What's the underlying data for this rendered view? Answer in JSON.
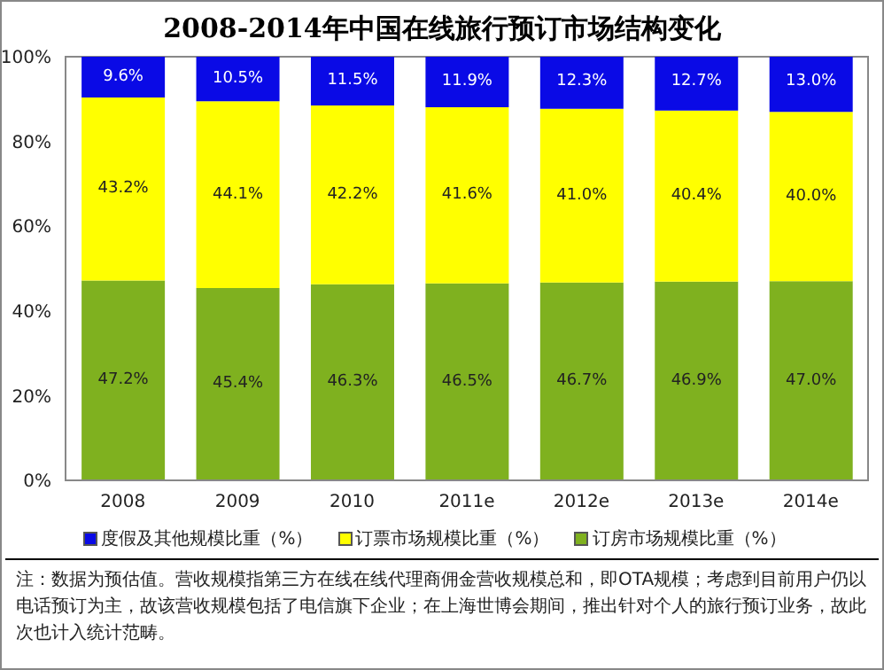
{
  "chart_data": {
    "type": "bar",
    "title": "2008-2014年中国在线旅行预订市场结构变化",
    "categories": [
      "2008",
      "2009",
      "2010",
      "2011e",
      "2012e",
      "2013e",
      "2014e"
    ],
    "stacked": true,
    "ylim": [
      0,
      100
    ],
    "yticks": [
      {
        "value": 0,
        "label": "0%"
      },
      {
        "value": 20,
        "label": "20%"
      },
      {
        "value": 40,
        "label": "40%"
      },
      {
        "value": 60,
        "label": "60%"
      },
      {
        "value": 80,
        "label": "80%"
      },
      {
        "value": 100,
        "label": "100%"
      }
    ],
    "legend": "bottom",
    "series": [
      {
        "name": "订房市场规模比重（%）",
        "color": "#7fb11f",
        "values": [
          47.2,
          45.4,
          46.3,
          46.5,
          46.7,
          46.9,
          47.0
        ],
        "value_labels": [
          "47.2%",
          "45.4%",
          "46.3%",
          "46.5%",
          "46.7%",
          "46.9%",
          "47.0%"
        ]
      },
      {
        "name": "订票市场规模比重（%）",
        "color": "#ffff00",
        "values": [
          43.2,
          44.1,
          42.2,
          41.6,
          41.0,
          40.4,
          40.0
        ],
        "value_labels": [
          "43.2%",
          "44.1%",
          "42.2%",
          "41.6%",
          "41.0%",
          "40.4%",
          "40.0%"
        ]
      },
      {
        "name": "度假及其他规模比重（%）",
        "color": "#0a0ae6",
        "values": [
          9.6,
          10.5,
          11.5,
          11.9,
          12.3,
          12.7,
          13.0
        ],
        "value_labels": [
          "9.6%",
          "10.5%",
          "11.5%",
          "11.9%",
          "12.3%",
          "12.7%",
          "13.0%"
        ]
      }
    ],
    "annotations": [
      "注：数据为预估值。营收规模指第三方在线在线代理商佣金营收规模总和，即OTA规模；考虑到目前用户仍以电话预订为主，故该营收规模包括了电信旗下企业；在上海世博会期间，推出针对个人的旅行预订业务，故此次也计入统计范畴。"
    ]
  }
}
